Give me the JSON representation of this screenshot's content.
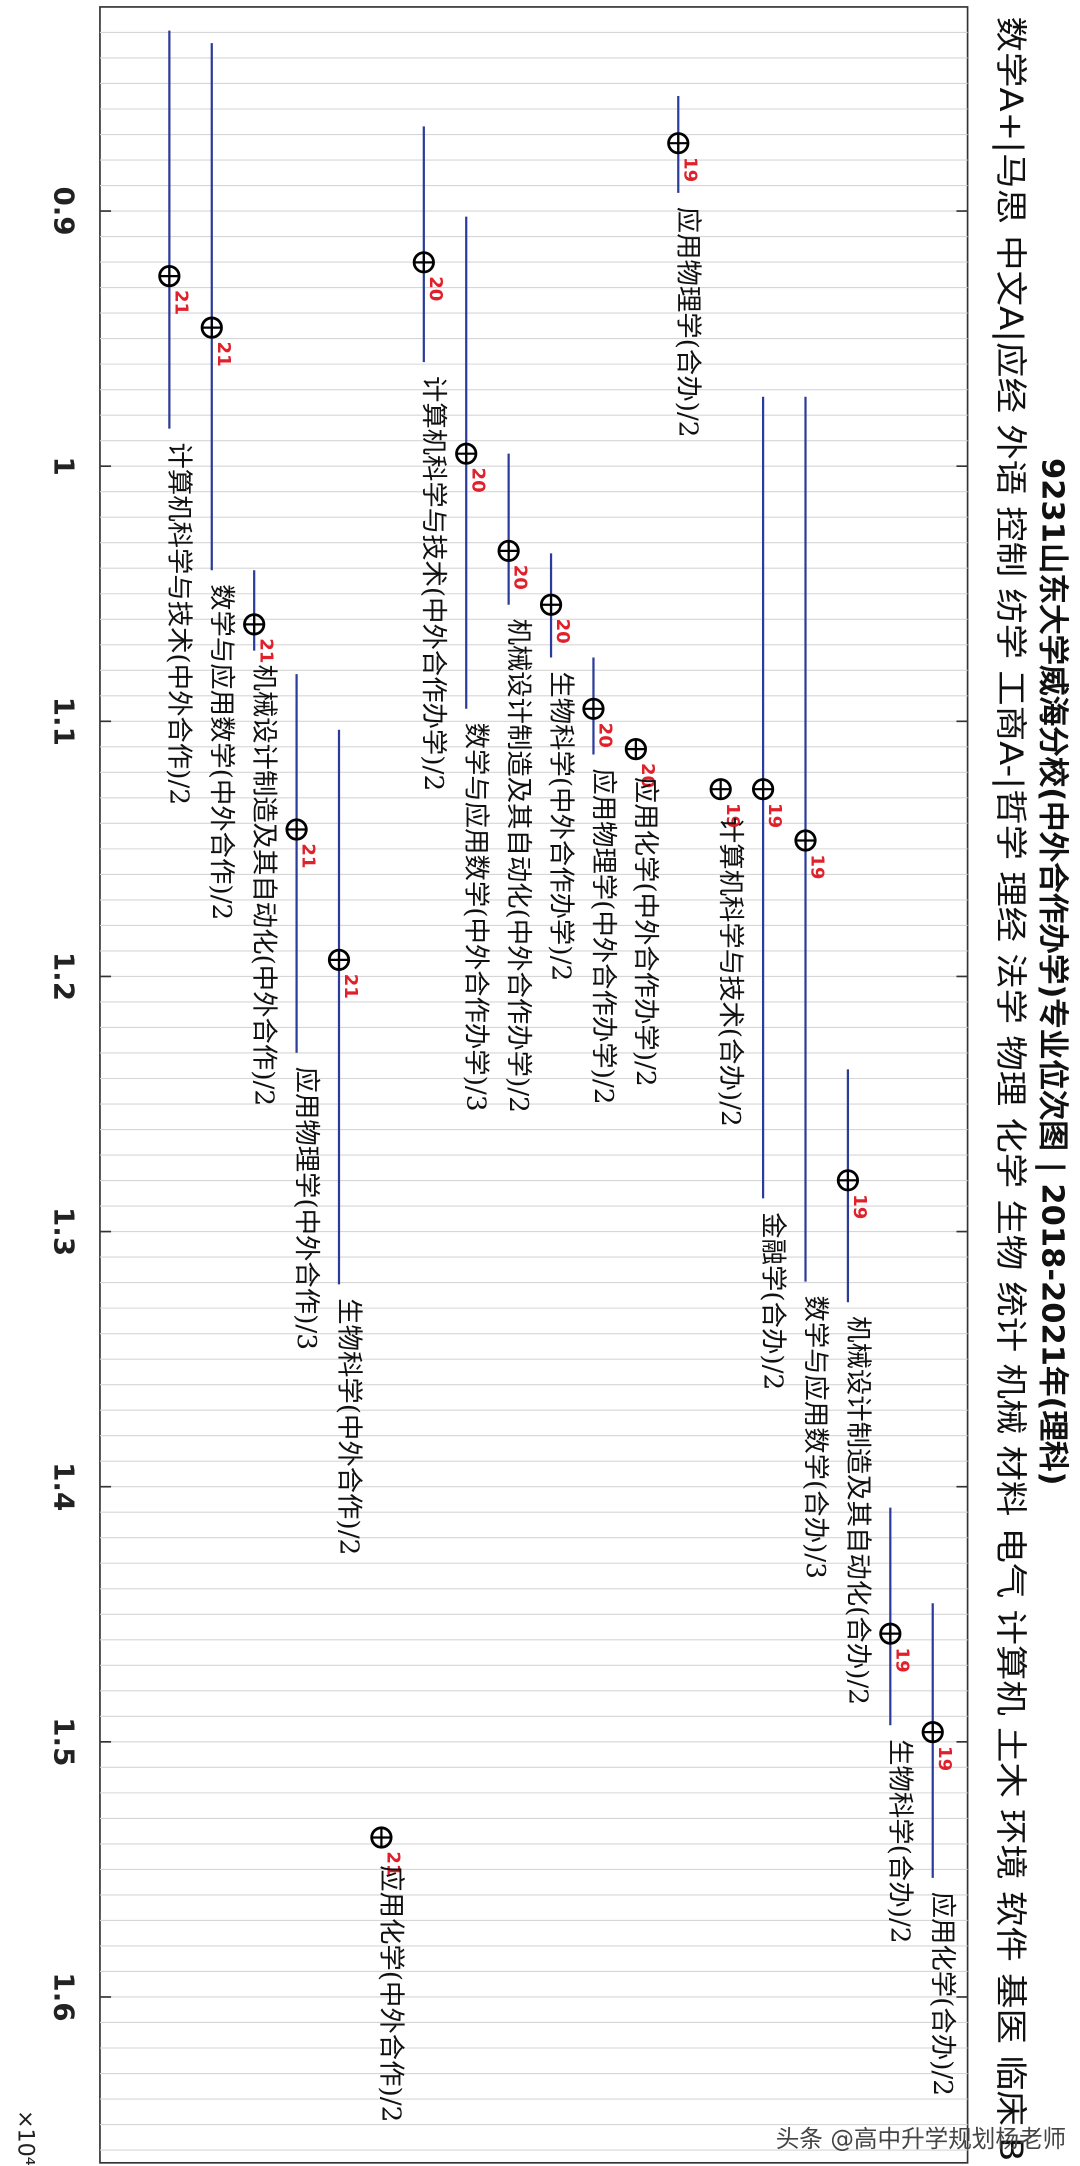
{
  "chart_data": {
    "type": "range_point",
    "title": "9231山东大学威海分校(中外合作办学)专业位次图 | 2018-2021年(理科)",
    "subtitle": "数学A+|马思 中文A|应经 外语 控制 纺学 工商A-|哲学 理经 法学 物理 化学 生物 统计 机械 材料 电气 计算机 土木 环境 软件 基医 临床 B",
    "axis_exponent_label": "×10⁴",
    "watermark": "头条 @高中升学规划杨老师",
    "categories": [
      "计算机科学与技术(中外合作)/2",
      "数学与应用数学(中外合作)/2",
      "机械设计制造及其自动化(中外合作)/2",
      "应用物理学(中外合作)/3",
      "生物科学(中外合作)/2",
      "应用化学(中外合作)/2",
      "计算机科学与技术(中外合作办学)/2",
      "数学与应用数学(中外合作办学)/3",
      "机械设计制造及其自动化(中外合作办学)/2",
      "生物科学(中外合作办学)/2",
      "应用物理学(中外合作办学)/2",
      "应用化学(中外合作办学)/2",
      "应用物理学(合办)/2",
      "计算机科学与技术(合办)/2",
      "金融学(合办)/2",
      "数学与应用数学(合办)/3",
      "机械设计制造及其自动化(合办)/2",
      "生物科学(合办)/2",
      "应用化学(合办)/2"
    ],
    "years": [
      "21",
      "21",
      "21",
      "21",
      "21",
      "21",
      "20",
      "20",
      "20",
      "20",
      "20",
      "20",
      "19",
      "19",
      "19",
      "19",
      "19",
      "19",
      "19"
    ],
    "values": [
      0.9255,
      0.9457,
      1.062,
      1.1424,
      1.1935,
      1.5375,
      0.9201,
      0.9951,
      1.0332,
      1.0543,
      1.0951,
      1.1109,
      0.8734,
      1.1266,
      1.1266,
      1.1467,
      1.2799,
      1.4576,
      1.4962
    ],
    "min": [
      0.8293,
      0.8342,
      1.0408,
      1.0815,
      1.1033,
      null,
      0.8668,
      0.9022,
      0.9951,
      1.0342,
      1.075,
      null,
      0.8549,
      null,
      0.9728,
      0.9728,
      1.2364,
      1.4082,
      1.4457
    ],
    "max": [
      0.9853,
      1.0408,
      1.0723,
      1.2299,
      1.3207,
      null,
      0.9592,
      1.0951,
      1.0543,
      1.075,
      1.113,
      null,
      0.8929,
      null,
      1.287,
      1.3196,
      1.3277,
      1.4935,
      1.5533
    ],
    "line_color": "#2b3b99",
    "marker_color": "#000000",
    "year_color": "#e0202a",
    "ylim": [
      0.82,
      1.665
    ],
    "yticks": [
      0.9,
      1,
      1.1,
      1.2,
      1.3,
      1.4,
      1.5,
      1.6
    ],
    "minor_gridlines": [
      0.83,
      0.84,
      0.85,
      0.86,
      0.87,
      0.88,
      0.89,
      0.9,
      0.91,
      0.92,
      0.93,
      0.94,
      0.95,
      0.96,
      0.97,
      0.98,
      0.99,
      1,
      1.01,
      1.02,
      1.03,
      1.04,
      1.05,
      1.06,
      1.07,
      1.08,
      1.09,
      1.1,
      1.11,
      1.12,
      1.13,
      1.14,
      1.15,
      1.16,
      1.17,
      1.18,
      1.19,
      1.2,
      1.21,
      1.22,
      1.23,
      1.24,
      1.25,
      1.26,
      1.27,
      1.28,
      1.29,
      1.3,
      1.31,
      1.32,
      1.33,
      1.34,
      1.35,
      1.36,
      1.37,
      1.38,
      1.39,
      1.4,
      1.41,
      1.42,
      1.43,
      1.44,
      1.45,
      1.46,
      1.47,
      1.48,
      1.49,
      1.5,
      1.51,
      1.52,
      1.53,
      1.54,
      1.55,
      1.56,
      1.57,
      1.58,
      1.59,
      1.6,
      1.61,
      1.62,
      1.63,
      1.64,
      1.65,
      1.66
    ],
    "grid": true
  }
}
